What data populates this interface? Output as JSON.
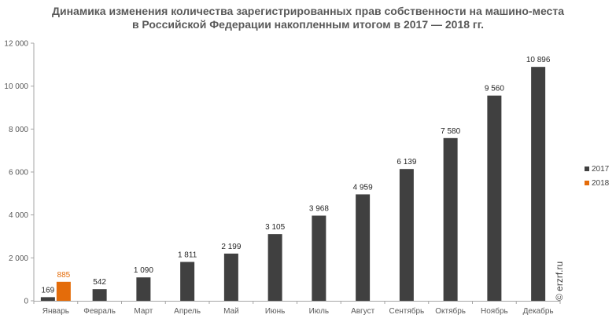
{
  "chart_data": {
    "type": "bar",
    "title": [
      "Динамика изменения количества зарегистрированных прав собственности на машино-места",
      "в Российской Федерации накопленным итогом в 2017 — 2018 гг."
    ],
    "xlabel": "",
    "ylabel": "",
    "categories": [
      "Январь",
      "Февраль",
      "Март",
      "Апрель",
      "Май",
      "Июнь",
      "Июль",
      "Август",
      "Сентябрь",
      "Октябрь",
      "Ноябрь",
      "Декабрь"
    ],
    "series": [
      {
        "name": "2017",
        "color": "#404040",
        "label_color": "#262626",
        "values": [
          169,
          542,
          1090,
          1811,
          2199,
          3105,
          3968,
          4959,
          6139,
          7580,
          9560,
          10896
        ],
        "labels": [
          "169",
          "542",
          "1 090",
          "1 811",
          "2 199",
          "3 105",
          "3 968",
          "4 959",
          "6 139",
          "7 580",
          "9 560",
          "10 896"
        ]
      },
      {
        "name": "2018",
        "color": "#e46c0a",
        "label_color": "#e46c0a",
        "values": [
          885,
          null,
          null,
          null,
          null,
          null,
          null,
          null,
          null,
          null,
          null,
          null
        ],
        "labels": [
          "885",
          null,
          null,
          null,
          null,
          null,
          null,
          null,
          null,
          null,
          null,
          null
        ]
      }
    ],
    "ylim": [
      0,
      12000
    ],
    "yticks": [
      0,
      2000,
      4000,
      6000,
      8000,
      10000,
      12000
    ],
    "ytick_labels": [
      "0",
      "2 000",
      "4 000",
      "6 000",
      "8 000",
      "10 000",
      "12 000"
    ],
    "grid": false,
    "legend_position": "right",
    "watermark": "© erzrf.ru"
  }
}
